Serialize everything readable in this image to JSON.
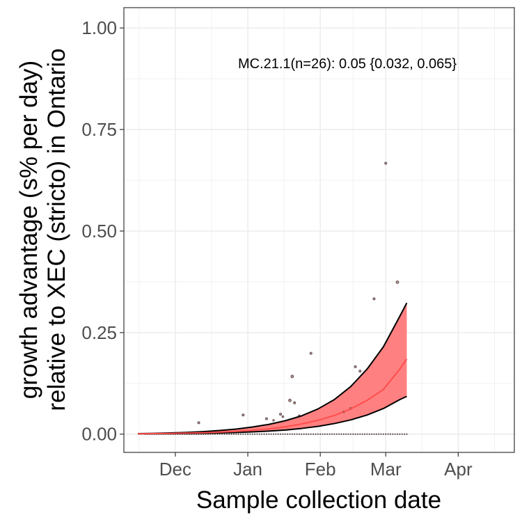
{
  "chart_data": {
    "type": "line",
    "annotation": "MC.21.1(n=26): 0.05 {0.032, 0.065}",
    "xlabel": "Sample collection date",
    "ylabel_line1": "growth advantage (s% per day)",
    "ylabel_line2": "relative to XEC (stricto) in Ontario",
    "xlim": [
      "2024-11-09",
      "2025-04-25"
    ],
    "ylim": [
      -0.045,
      1.05
    ],
    "x_ticks": [
      {
        "date": "2024-12-01",
        "label": "Dec"
      },
      {
        "date": "2025-01-01",
        "label": "Jan"
      },
      {
        "date": "2025-02-01",
        "label": "Feb"
      },
      {
        "date": "2025-03-01",
        "label": "Mar"
      },
      {
        "date": "2025-04-01",
        "label": "Apr"
      }
    ],
    "y_ticks": [
      {
        "value": 0.0,
        "label": "0.00"
      },
      {
        "value": 0.25,
        "label": "0.25"
      },
      {
        "value": 0.5,
        "label": "0.50"
      },
      {
        "value": 0.75,
        "label": "0.75"
      },
      {
        "value": 1.0,
        "label": "1.00"
      }
    ],
    "grid": true,
    "colors": {
      "ribbon_fill": "#ff8080",
      "fit_line": "#ff4d4d",
      "ci_line": "#000000",
      "point": "#5a4a4a",
      "grid": "#ebebeb",
      "panel_border": "#333333"
    },
    "fit": {
      "x": [
        "2024-11-15",
        "2024-11-22",
        "2024-11-29",
        "2024-12-06",
        "2024-12-13",
        "2024-12-20",
        "2024-12-27",
        "2025-01-03",
        "2025-01-10",
        "2025-01-17",
        "2025-01-24",
        "2025-01-31",
        "2025-02-07",
        "2025-02-14",
        "2025-02-21",
        "2025-02-28",
        "2025-03-07",
        "2025-03-10"
      ],
      "y": [
        0.0009,
        0.0013,
        0.0018,
        0.0025,
        0.0035,
        0.0049,
        0.0068,
        0.0095,
        0.013,
        0.018,
        0.025,
        0.034,
        0.046,
        0.062,
        0.083,
        0.11,
        0.16,
        0.185
      ],
      "lower": [
        0.0006,
        0.0008,
        0.0011,
        0.0015,
        0.0021,
        0.0029,
        0.004,
        0.0055,
        0.0075,
        0.01,
        0.014,
        0.019,
        0.026,
        0.035,
        0.047,
        0.063,
        0.085,
        0.093
      ],
      "upper": [
        0.0013,
        0.002,
        0.003,
        0.0043,
        0.0062,
        0.0089,
        0.0125,
        0.0175,
        0.024,
        0.033,
        0.045,
        0.062,
        0.085,
        0.117,
        0.16,
        0.215,
        0.29,
        0.323
      ]
    },
    "points": [
      {
        "x": "2024-12-11",
        "y": 0.028,
        "r": 1.6
      },
      {
        "x": "2024-12-30",
        "y": 0.047,
        "r": 1.6
      },
      {
        "x": "2025-01-09",
        "y": 0.038,
        "r": 1.6
      },
      {
        "x": "2025-01-12",
        "y": 0.034,
        "r": 1.3
      },
      {
        "x": "2025-01-15",
        "y": 0.049,
        "r": 1.6
      },
      {
        "x": "2025-01-16",
        "y": 0.043,
        "r": 1.4
      },
      {
        "x": "2025-01-19",
        "y": 0.083,
        "r": 2.0
      },
      {
        "x": "2025-01-20",
        "y": 0.142,
        "r": 2.0
      },
      {
        "x": "2025-01-21",
        "y": 0.077,
        "r": 1.6
      },
      {
        "x": "2025-01-23",
        "y": 0.045,
        "r": 1.4
      },
      {
        "x": "2025-01-28",
        "y": 0.199,
        "r": 1.6
      },
      {
        "x": "2025-02-11",
        "y": 0.055,
        "r": 1.4
      },
      {
        "x": "2025-02-14",
        "y": 0.063,
        "r": 1.4
      },
      {
        "x": "2025-02-16",
        "y": 0.166,
        "r": 1.6
      },
      {
        "x": "2025-02-18",
        "y": 0.155,
        "r": 1.6
      },
      {
        "x": "2025-02-24",
        "y": 0.333,
        "r": 1.6
      },
      {
        "x": "2025-03-01",
        "y": 0.667,
        "r": 1.6
      },
      {
        "x": "2025-03-06",
        "y": 0.374,
        "r": 2.0
      }
    ],
    "zero_points": {
      "start": "2024-11-18",
      "end": "2025-03-10",
      "y": 0.0,
      "r": 1.1
    }
  }
}
